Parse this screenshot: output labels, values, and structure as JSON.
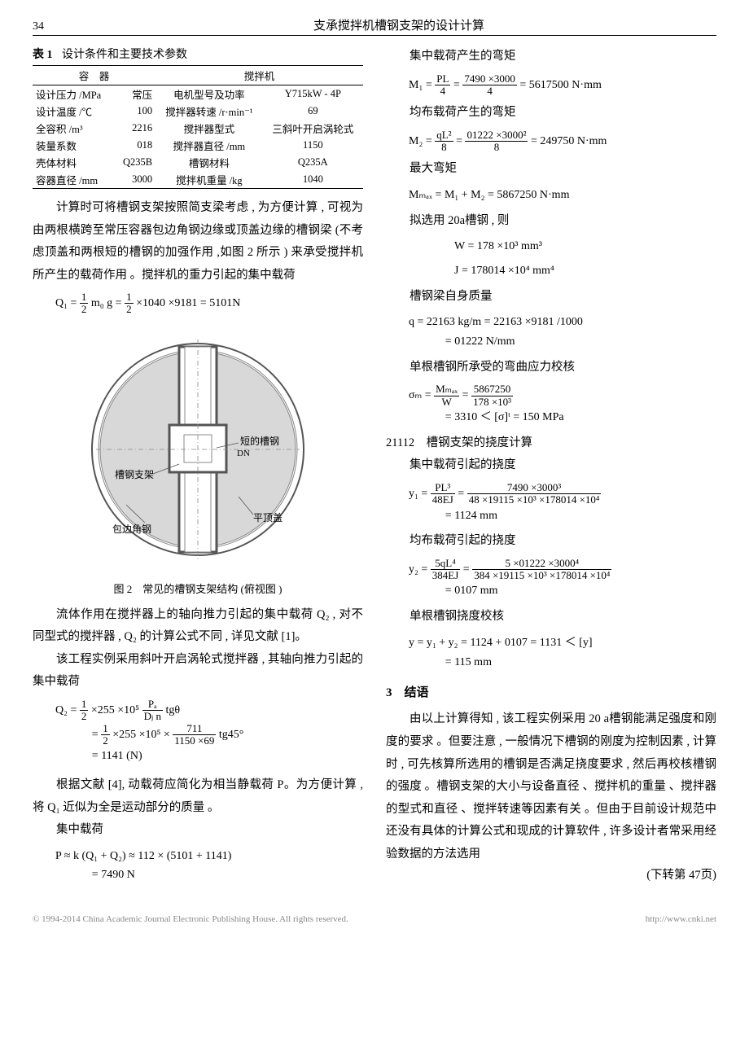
{
  "page": {
    "number": "34",
    "running_title": "支承搅拌机槽钢支架的设计计算"
  },
  "table1": {
    "caption_label": "表 1",
    "caption_text": "设计条件和主要技术参数",
    "head_left": "容　器",
    "head_right": "搅拌机",
    "rows_left": [
      {
        "k": "设计压力 /MPa",
        "v": "常压"
      },
      {
        "k": "设计温度 /℃",
        "v": "100"
      },
      {
        "k": "全容积 /m³",
        "v": "2216"
      },
      {
        "k": "装量系数",
        "v": "018"
      },
      {
        "k": "壳体材料",
        "v": "Q235B"
      },
      {
        "k": "容器直径 /mm",
        "v": "3000"
      }
    ],
    "rows_right": [
      {
        "k": "电机型号及功率",
        "v": "Y715kW - 4P"
      },
      {
        "k": "搅拌器转速 /r·min⁻¹",
        "v": "69"
      },
      {
        "k": "搅拌器型式",
        "v": "三斜叶开启涡轮式"
      },
      {
        "k": "搅拌器直径 /mm",
        "v": "1150"
      },
      {
        "k": "槽钢材料",
        "v": "Q235A"
      },
      {
        "k": "搅拌机重量 /kg",
        "v": "1040"
      }
    ]
  },
  "left_body": {
    "p1": "计算时可将槽钢支架按照简支梁考虑 , 为方便计算 , 可视为由两根横跨至常压容器包边角钢边缘或顶盖边缘的槽钢梁 (不考虑顶盖和两根短的槽钢的加强作用 ,如图 2 所示 ) 来承受搅拌机所产生的载荷作用 。搅拌机的重力引起的集中载荷",
    "q1_lhs": "Q₁ =",
    "q1_f1n": "1",
    "q1_f1d": "2",
    "q1_mid": "m₀ g =",
    "q1_f2n": "1",
    "q1_f2d": "2",
    "q1_tail": "×1040 ×9181 = 5101N",
    "fig2_caption": "图 2　常见的槽钢支架结构 (俯视图 )",
    "fig2_labels": {
      "a": "槽钢支架",
      "b": "短的槽钢",
      "c": "包边角钢",
      "d": "平顶盖",
      "e": "DN"
    },
    "p2": "流体作用在搅拌器上的轴向推力引起的集中载荷 Q₂ , 对不同型式的搅拌器 , Q₂ 的计算公式不同 , 详见文献 [1]。",
    "p3": "该工程实例采用斜叶开启涡轮式搅拌器 , 其轴向推力引起的集中载荷",
    "q2_a": "Q₂ =",
    "q2_a_f1n": "1",
    "q2_a_f1d": "2",
    "q2_a_mid": "×255 ×10⁵",
    "q2_a_f2n": "Pₐ",
    "q2_a_f2d": "Dⱼ n",
    "q2_a_tail": "tgθ",
    "q2_b_pre": "=",
    "q2_b_f1n": "1",
    "q2_b_f1d": "2",
    "q2_b_mid": "×255 ×10⁵ ×",
    "q2_b_f2n": "711",
    "q2_b_f2d": "1150 ×69",
    "q2_b_tail": "tg45°",
    "q2_c": "= 1141 (N)",
    "p4": "根据文献 [4], 动载荷应简化为相当静载荷 P。为方便计算 , 将 Q₁ 近似为全是运动部分的质量 。",
    "pzh_label": "集中载荷",
    "p_eq1": "P ≈ k (Q₁ + Q₂) ≈ 112 × (5101 + 1141)",
    "p_eq2": "= 7490 N"
  },
  "right_body": {
    "l1": "集中载荷产生的弯矩",
    "m1_lhs": "M₁ =",
    "m1_f1n": "PL",
    "m1_f1d": "4",
    "m1_eq": "=",
    "m1_f2n": "7490 ×3000",
    "m1_f2d": "4",
    "m1_tail": "= 5617500 N·mm",
    "l2": "均布载荷产生的弯矩",
    "m2_lhs": "M₂ =",
    "m2_f1n": "qL²",
    "m2_f1d": "8",
    "m2_eq": "=",
    "m2_f2n": "01222 ×3000²",
    "m2_f2d": "8",
    "m2_tail": "= 249750 N·mm",
    "l3": "最大弯矩",
    "mmax": "Mₘₐₓ = M₁ + M₂ = 5867250 N·mm",
    "l4": "拟选用 20a槽钢 , 则",
    "w_eq": "W = 178 ×10³ mm³",
    "j_eq": "J = 178014 ×10⁴ mm⁴",
    "l5": "槽钢梁自身质量",
    "q_a": "q = 22163 kg/m = 22163 ×9181 /1000",
    "q_b": "= 01222 N/mm",
    "l6": "单根槽钢所承受的弯曲应力校核",
    "sigma_lhs": "σₘ =",
    "sigma_f1n": "Mₘₐₓ",
    "sigma_f1d": "W",
    "sigma_eq": "=",
    "sigma_f2n": "5867250",
    "sigma_f2d": "178 ×10³",
    "sigma_res": "= 3310 ＜ [σ]ᵗ = 150 MPa",
    "sec_21112": "21112　槽钢支架的挠度计算",
    "l7": "集中载荷引起的挠度",
    "y1_lhs": "y₁ =",
    "y1_f1n": "PL³",
    "y1_f1d": "48EJ",
    "y1_eq": "=",
    "y1_f2n": "7490 ×3000³",
    "y1_f2d": "48 ×19115 ×10³ ×178014 ×10⁴",
    "y1_res": "= 1124 mm",
    "l8": "均布载荷引起的挠度",
    "y2_lhs": "y₂ =",
    "y2_f1n": "5qL⁴",
    "y2_f1d": "384EJ",
    "y2_eq": "=",
    "y2_f2n": "5 ×01222 ×3000⁴",
    "y2_f2d": "384 ×19115 ×10³ ×178014 ×10⁴",
    "y2_res": "= 0107 mm",
    "l9": "单根槽钢挠度校核",
    "y_sum": "y = y₁ + y₂ = 1124 + 0107 = 1131 ＜ [y]",
    "y_lim": "= 115 mm",
    "h3": "3　结语",
    "p_conc": "由以上计算得知 , 该工程实例采用 20 a槽钢能满足强度和刚度的要求 。但要注意 , 一般情况下槽钢的刚度为控制因素 , 计算时 , 可先核算所选用的槽钢是否满足挠度要求 , 然后再校核槽钢的强度 。槽钢支架的大小与设备直径 、搅拌机的重量 、搅拌器的型式和直径 、搅拌转速等因素有关 。但由于目前设计规范中还没有具体的计算公式和现成的计算软件 , 许多设计者常采用经验数据的方法选用",
    "continue": "(下转第 47页)"
  },
  "footer": {
    "left": "© 1994-2014 China Academic Journal Electronic Publishing House. All rights reserved.",
    "right": "http://www.cnki.net"
  },
  "colors": {
    "text": "#000000",
    "footer": "#888888",
    "diagram_stroke": "#666666"
  }
}
